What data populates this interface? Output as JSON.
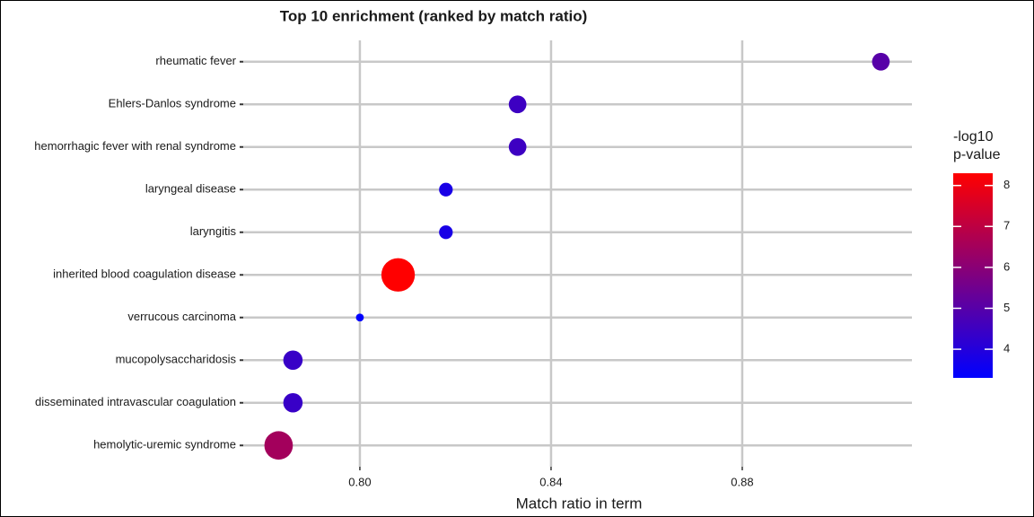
{
  "chart_data": {
    "type": "dot",
    "title": "Top 10 enrichment (ranked by match ratio)",
    "xlabel": "Match ratio in term",
    "categories": [
      "rheumatic fever",
      "Ehlers-Danlos syndrome",
      "hemorrhagic fever with renal syndrome",
      "laryngeal disease",
      "laryngitis",
      "inherited blood coagulation disease",
      "verrucous carcinoma",
      "mucopolysaccharidosis",
      "disseminated intravascular coagulation",
      "hemolytic-uremic syndrome"
    ],
    "values": [
      0.909,
      0.833,
      0.833,
      0.818,
      0.818,
      0.808,
      0.8,
      0.786,
      0.786,
      0.783
    ],
    "color_values": [
      5.0,
      4.5,
      4.5,
      3.8,
      3.8,
      8.3,
      3.3,
      4.4,
      4.4,
      6.5
    ],
    "sizes": [
      5,
      5,
      5,
      3,
      3,
      18,
      1,
      6,
      6,
      13
    ],
    "xlim": [
      0.7756,
      0.9155
    ],
    "xticks": [
      {
        "value": 0.8,
        "label": "0.80"
      },
      {
        "value": 0.84,
        "label": "0.84"
      },
      {
        "value": 0.88,
        "label": "0.88"
      }
    ],
    "colorbar": {
      "title": [
        "-log10",
        "p-value"
      ],
      "lim": [
        3.3,
        8.3
      ],
      "ticks": [
        4,
        5,
        6,
        7,
        8
      ],
      "colors": [
        "#0000ff",
        "#ff0000"
      ]
    },
    "grid": true
  }
}
